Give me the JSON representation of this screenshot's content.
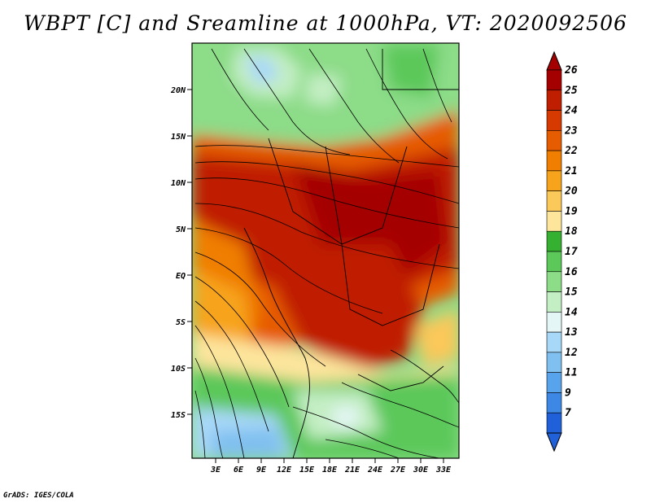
{
  "title": "WBPT [C] and Sreamline at 1000hPa, VT: 2020092506",
  "credit": "GrADS: IGES/COLA",
  "map": {
    "variable": "WBPT [C]",
    "overlay": "Streamline",
    "level": "1000hPa",
    "valid_time": "2020092506",
    "y_ticks": [
      "20N",
      "15N",
      "10N",
      "5N",
      "EQ",
      "5S",
      "10S",
      "15S"
    ],
    "x_ticks": [
      "3E",
      "6E",
      "9E",
      "12E",
      "15E",
      "18E",
      "21E",
      "24E",
      "27E",
      "30E",
      "33E"
    ]
  },
  "colorbar": {
    "labels": [
      "26",
      "25",
      "24",
      "23",
      "22",
      "21",
      "20",
      "19",
      "18",
      "17",
      "16",
      "15",
      "14",
      "13",
      "12",
      "11",
      "9",
      "7"
    ],
    "colors": [
      "#a50000",
      "#c01e00",
      "#d73a00",
      "#e65c00",
      "#f07e00",
      "#f7a41c",
      "#fbc85a",
      "#fde59c",
      "#36b030",
      "#5cc85a",
      "#8cdc88",
      "#c4eec4",
      "#e4f6f6",
      "#a8d8f8",
      "#80c0f0",
      "#58a4ec",
      "#3c88e4",
      "#2060d8"
    ]
  },
  "colors": {
    "hot": "#c81e00",
    "warm": "#f07e00",
    "mild": "#fbc85a",
    "green": "#5cc85a",
    "light_green": "#a8e4a0",
    "cool": "#a8d8f8"
  }
}
